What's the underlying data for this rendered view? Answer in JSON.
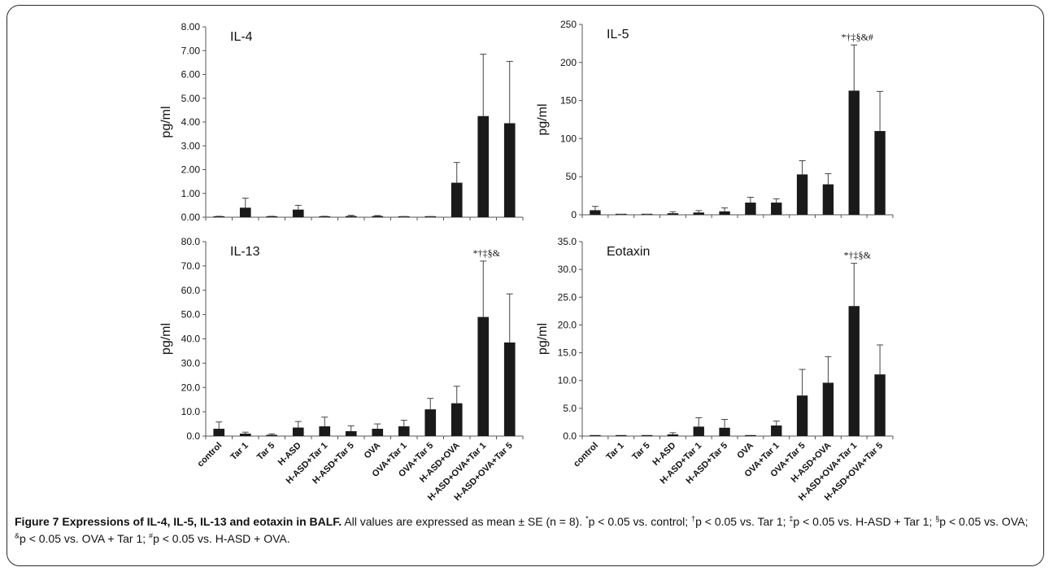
{
  "chart_data": [
    {
      "type": "bar",
      "title": "IL-4",
      "ylabel": "pg/ml",
      "ylim": [
        0,
        8
      ],
      "yticks": [
        "0.00",
        "1.00",
        "2.00",
        "3.00",
        "4.00",
        "5.00",
        "6.00",
        "7.00",
        "8.00"
      ],
      "categories": [
        "control",
        "Tar 1",
        "Tar 5",
        "H-ASD",
        "H-ASD+Tar 1",
        "H-ASD+Tar 5",
        "OVA",
        "OVA+Tar 1",
        "OVA+Tar 5",
        "H-ASD+OVA",
        "H-ASD+OVA+Tar 1",
        "H-ASD+OVA+Tar 5"
      ],
      "values": [
        0.02,
        0.4,
        0.02,
        0.32,
        0.02,
        0.05,
        0.05,
        0.02,
        0.02,
        1.45,
        4.25,
        3.95
      ],
      "errors": [
        0.02,
        0.4,
        0.02,
        0.18,
        0.02,
        0.03,
        0.02,
        0.01,
        0.01,
        0.85,
        2.6,
        2.6
      ],
      "annotation": "",
      "show_xlabels": false
    },
    {
      "type": "bar",
      "title": "IL-5",
      "ylabel": "pg/ml",
      "ylim": [
        0,
        250
      ],
      "yticks": [
        "0",
        "50",
        "100",
        "150",
        "200",
        "250"
      ],
      "categories": [
        "control",
        "Tar 1",
        "Tar 5",
        "H-ASD",
        "H-ASD+Tar 1",
        "H-ASD+Tar 5",
        "OVA",
        "OVA+Tar 1",
        "OVA+Tar 5",
        "H-ASD+OVA",
        "H-ASD+OVA+Tar 1",
        "H-ASD+OVA+Tar 5"
      ],
      "values": [
        6,
        0.3,
        0.3,
        2,
        3,
        4.5,
        16,
        16,
        53,
        40,
        163,
        110
      ],
      "errors": [
        5,
        0.3,
        0.3,
        2,
        2.5,
        4.5,
        7,
        5,
        18,
        14,
        60,
        52
      ],
      "annotation": "*†‡§&#",
      "annotation_index": 10,
      "show_xlabels": false
    },
    {
      "type": "bar",
      "title": "IL-13",
      "ylabel": "pg/ml",
      "ylim": [
        0,
        80
      ],
      "yticks": [
        "0.0",
        "10.0",
        "20.0",
        "30.0",
        "40.0",
        "50.0",
        "60.0",
        "70.0",
        "80.0"
      ],
      "categories": [
        "control",
        "Tar 1",
        "Tar 5",
        "H-ASD",
        "H-ASD+Tar 1",
        "H-ASD+Tar 5",
        "OVA",
        "OVA+Tar 1",
        "OVA+Tar 5",
        "H-ASD+OVA",
        "H-ASD+OVA+Tar 1",
        "H-ASD+OVA+Tar 5"
      ],
      "values": [
        3,
        1,
        0.5,
        3.5,
        4,
        2,
        3,
        4,
        11,
        13.5,
        49,
        38.5
      ],
      "errors": [
        2.8,
        0.6,
        0.4,
        2.5,
        3.8,
        2.2,
        2,
        2.5,
        4.5,
        7,
        23,
        20
      ],
      "annotation": "*†‡§&",
      "annotation_index": 10,
      "show_xlabels": true
    },
    {
      "type": "bar",
      "title": "Eotaxin",
      "ylabel": "pg/ml",
      "ylim": [
        0,
        35
      ],
      "yticks": [
        "0.0",
        "5.0",
        "10.0",
        "15.0",
        "20.0",
        "25.0",
        "30.0",
        "35.0"
      ],
      "categories": [
        "control",
        "Tar 1",
        "Tar 5",
        "H-ASD",
        "H-ASD+Tar 1",
        "H-ASD+Tar 5",
        "OVA",
        "OVA+Tar 1",
        "OVA+Tar 5",
        "H-ASD+OVA",
        "H-ASD+OVA+Tar 1",
        "H-ASD+OVA+Tar 5"
      ],
      "values": [
        0,
        0,
        0,
        0.3,
        1.7,
        1.5,
        0,
        1.9,
        7.3,
        9.6,
        23.4,
        11.1
      ],
      "errors": [
        0,
        0,
        0,
        0.3,
        1.6,
        1.5,
        0,
        0.8,
        4.7,
        4.7,
        7.7,
        5.3
      ],
      "annotation": "*†‡§&",
      "annotation_index": 10,
      "show_xlabels": true
    }
  ],
  "caption": {
    "label": "Figure 7",
    "title": "Expressions of IL-4, IL-5, IL-13 and eotaxin in BALF.",
    "text_1": " All values are expressed as mean ± SE (n = 8). ",
    "sym_1": "*",
    "text_2": "p < 0.05 vs. control; ",
    "sym_2": "†",
    "text_3": "p < 0.05 vs. Tar 1; ",
    "sym_3": "‡",
    "text_4": "p < 0.05 vs. H-ASD + Tar 1; ",
    "sym_4": "§",
    "text_5": "p < 0.05 vs. OVA; ",
    "sym_5": "&",
    "text_6": "p < 0.05 vs. OVA + Tar 1; ",
    "sym_6": "#",
    "text_7": "p < 0.05 vs. H-ASD + OVA."
  }
}
